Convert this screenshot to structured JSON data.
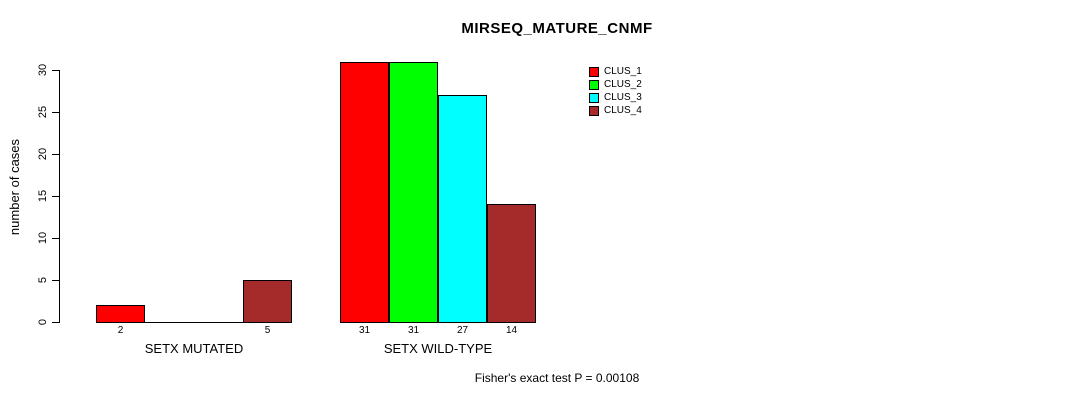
{
  "chart_data": {
    "type": "bar",
    "title": "MIRSEQ_MATURE_CNMF",
    "ylabel": "number of cases",
    "xlabel": "",
    "categories": [
      "SETX MUTATED",
      "SETX WILD-TYPE"
    ],
    "series": [
      {
        "name": "CLUS_1",
        "color": "#ff0000",
        "values": [
          2,
          31
        ]
      },
      {
        "name": "CLUS_2",
        "color": "#00ff00",
        "values": [
          0,
          31
        ]
      },
      {
        "name": "CLUS_3",
        "color": "#00ffff",
        "values": [
          0,
          27
        ]
      },
      {
        "name": "CLUS_4",
        "color": "#a52a2a",
        "values": [
          5,
          14
        ]
      }
    ],
    "bar_value_labels": [
      [
        "2",
        "",
        "",
        "5"
      ],
      [
        "31",
        "31",
        "27",
        "14"
      ]
    ],
    "yticks": [
      0,
      5,
      10,
      15,
      20,
      25,
      30
    ],
    "ylim": [
      0,
      31
    ],
    "grid": false,
    "legend_position": "top-right",
    "annotation": "Fisher's exact test P = 0.00108",
    "colors": {
      "background": "#ffffff",
      "axis": "#000000",
      "text": "#000000"
    }
  }
}
